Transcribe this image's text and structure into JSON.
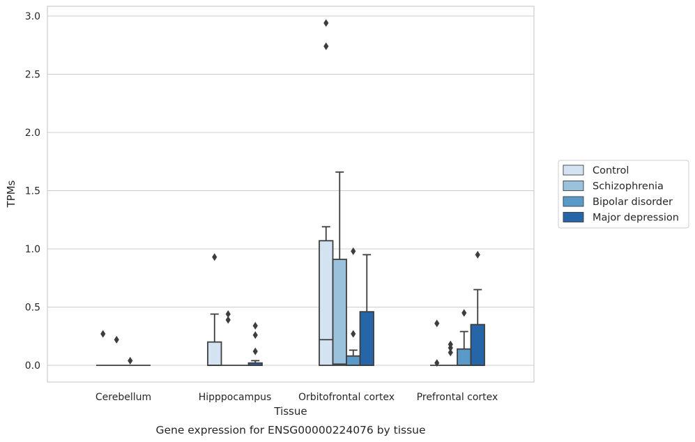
{
  "chart_data": {
    "type": "box",
    "xlabel": "Tissue",
    "ylabel": "TPMs",
    "caption": "Gene expression for ENSG00000224076 by tissue",
    "ylim": [
      -0.14,
      3.08
    ],
    "yticks": [
      0.0,
      0.5,
      1.0,
      1.5,
      2.0,
      2.5,
      3.0
    ],
    "grid": true,
    "legend_position": "right",
    "categories": [
      "Cerebellum",
      "Hipppocampus",
      "Orbitofrontal cortex",
      "Prefrontal cortex"
    ],
    "series": [
      {
        "name": "Control",
        "color": "#d4e3f2",
        "boxes": [
          {
            "q1": 0,
            "median": 0,
            "q3": 0,
            "whisker_low": 0,
            "whisker_high": 0,
            "outliers": [
              0.27
            ]
          },
          {
            "q1": 0,
            "median": 0,
            "q3": 0.2,
            "whisker_low": 0,
            "whisker_high": 0.44,
            "outliers": [
              0.93
            ]
          },
          {
            "q1": 0,
            "median": 0.22,
            "q3": 1.07,
            "whisker_low": 0,
            "whisker_high": 1.19,
            "outliers": [
              2.74,
              2.94
            ]
          },
          {
            "q1": 0,
            "median": 0,
            "q3": 0,
            "whisker_low": 0,
            "whisker_high": 0,
            "outliers": [
              0.02,
              0.36
            ]
          }
        ]
      },
      {
        "name": "Schizophrenia",
        "color": "#9ac2dc",
        "boxes": [
          {
            "q1": 0,
            "median": 0,
            "q3": 0,
            "whisker_low": 0,
            "whisker_high": 0,
            "outliers": [
              0.22
            ]
          },
          {
            "q1": 0,
            "median": 0,
            "q3": 0,
            "whisker_low": 0,
            "whisker_high": 0,
            "outliers": [
              0.44,
              0.39
            ]
          },
          {
            "q1": 0,
            "median": 0.01,
            "q3": 0.91,
            "whisker_low": 0,
            "whisker_high": 1.66,
            "outliers": []
          },
          {
            "q1": 0,
            "median": 0,
            "q3": 0,
            "whisker_low": 0,
            "whisker_high": 0,
            "outliers": [
              0.11,
              0.15,
              0.18
            ]
          }
        ]
      },
      {
        "name": "Bipolar disorder",
        "color": "#5a9ac8",
        "boxes": [
          {
            "q1": 0,
            "median": 0,
            "q3": 0,
            "whisker_low": 0,
            "whisker_high": 0,
            "outliers": [
              0.04
            ]
          },
          {
            "q1": 0,
            "median": 0,
            "q3": 0,
            "whisker_low": 0,
            "whisker_high": 0,
            "outliers": []
          },
          {
            "q1": 0,
            "median": 0,
            "q3": 0.08,
            "whisker_low": 0,
            "whisker_high": 0.13,
            "outliers": [
              0.27,
              0.98
            ]
          },
          {
            "q1": 0,
            "median": 0,
            "q3": 0.14,
            "whisker_low": 0,
            "whisker_high": 0.29,
            "outliers": [
              0.45
            ]
          }
        ]
      },
      {
        "name": "Major depression",
        "color": "#2565a8",
        "boxes": [
          {
            "q1": 0,
            "median": 0,
            "q3": 0,
            "whisker_low": 0,
            "whisker_high": 0,
            "outliers": []
          },
          {
            "q1": 0,
            "median": 0,
            "q3": 0.02,
            "whisker_low": 0,
            "whisker_high": 0.04,
            "outliers": [
              0.12,
              0.26,
              0.34
            ]
          },
          {
            "q1": 0,
            "median": 0,
            "q3": 0.46,
            "whisker_low": 0,
            "whisker_high": 0.95,
            "outliers": []
          },
          {
            "q1": 0,
            "median": 0,
            "q3": 0.35,
            "whisker_low": 0,
            "whisker_high": 0.65,
            "outliers": [
              0.95
            ]
          }
        ]
      }
    ]
  }
}
